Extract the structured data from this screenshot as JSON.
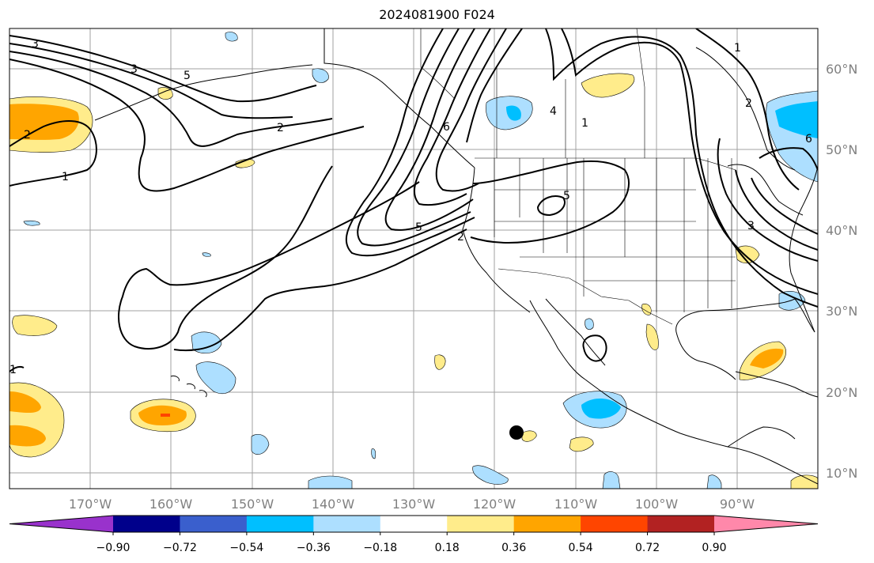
{
  "title": "2024081900 F024",
  "lat_labels": [
    "60°N",
    "50°N",
    "40°N",
    "30°N",
    "20°N",
    "10°N"
  ],
  "lon_labels": [
    "170°W",
    "160°W",
    "150°W",
    "140°W",
    "130°W",
    "120°W",
    "110°W",
    "100°W",
    "90°W"
  ],
  "colorbar": {
    "tick_labels": [
      "−0.90",
      "−0.72",
      "−0.54",
      "−0.36",
      "−0.18",
      "0.18",
      "0.36",
      "0.54",
      "0.72",
      "0.90"
    ],
    "colors": [
      "#9932CC",
      "#00008B",
      "#3A5FCD",
      "#00BFFF",
      "#ADDFFF",
      "#FFFFFF",
      "#FFEC8B",
      "#FFA500",
      "#FF4500",
      "#B22222",
      "#FF88AA"
    ]
  },
  "contour_labels": [
    "3",
    "3",
    "5",
    "2",
    "2",
    "1",
    "5",
    "2",
    "5",
    "6",
    "4",
    "1",
    "1",
    "2",
    "6",
    "3",
    "1"
  ],
  "marker": "black-dot"
}
